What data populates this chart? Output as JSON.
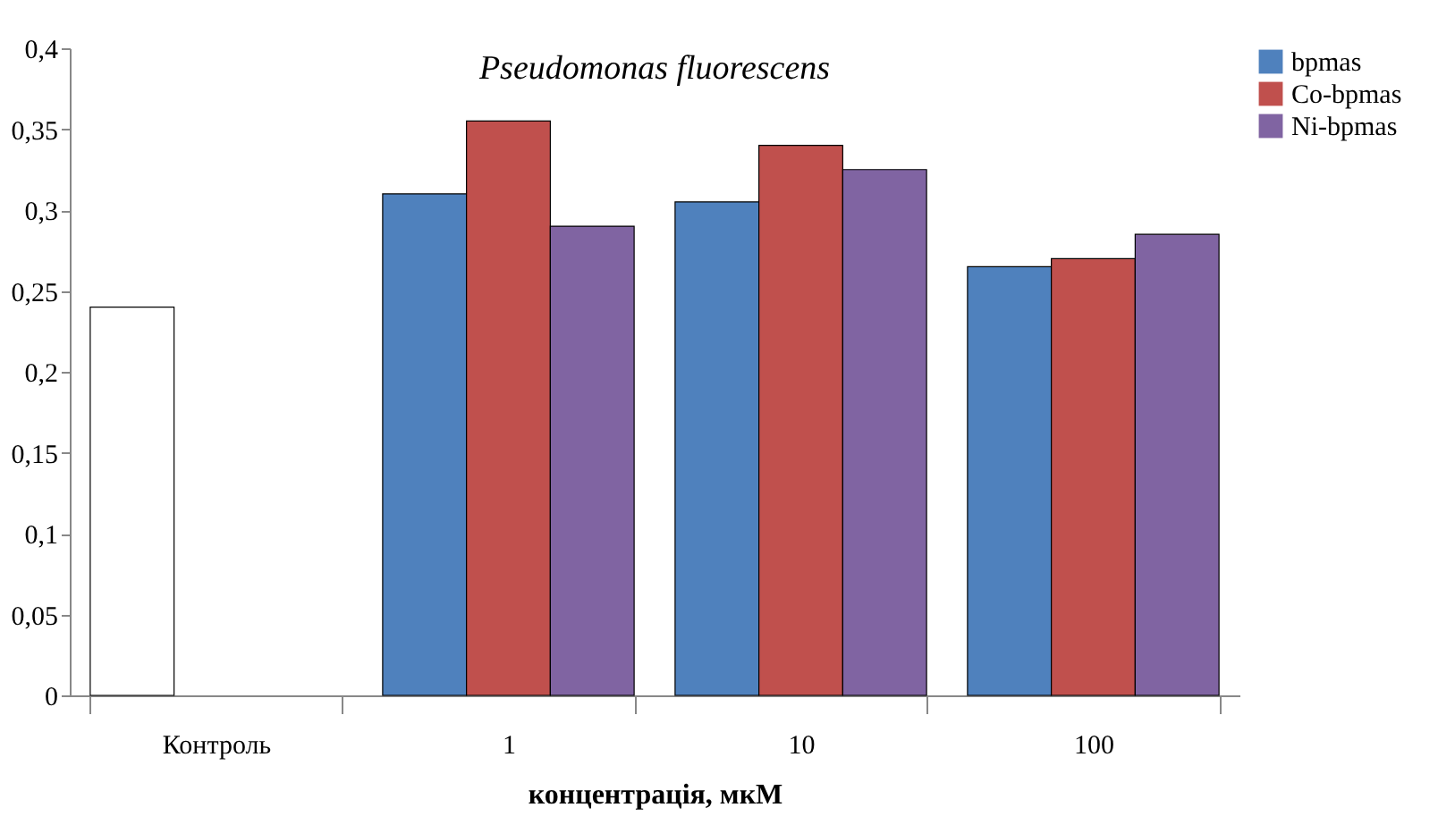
{
  "chart_data": {
    "type": "bar",
    "title": "Pseudomonas fluorescens",
    "xlabel": "концентрація, мкМ",
    "categories": [
      "Контроль",
      "1",
      "10",
      "100"
    ],
    "series": [
      {
        "color": "#ffffff",
        "values": [
          0.24,
          null,
          null,
          null
        ]
      },
      {
        "name": "bpmas",
        "color": "#4f81bd",
        "values": [
          null,
          0.31,
          0.305,
          0.265
        ]
      },
      {
        "name": "Co-bpmas",
        "color": "#c0504d",
        "values": [
          null,
          0.355,
          0.34,
          0.27
        ]
      },
      {
        "name": "Ni-bpmas",
        "color": "#8064a2",
        "values": [
          null,
          0.29,
          0.325,
          0.285
        ]
      }
    ],
    "ylim": [
      0,
      0.4
    ],
    "yticks": [
      0,
      {
        "value": 0.05,
        "label": "0,05"
      },
      {
        "value": 0.1,
        "label": "0,1"
      },
      {
        "value": 0.15,
        "label": "0,15"
      },
      {
        "value": 0.2,
        "label": "0,2"
      },
      {
        "value": 0.25,
        "label": "0,25"
      },
      {
        "value": 0.3,
        "label": "0,3"
      },
      {
        "value": 0.35,
        "label": "0,35"
      },
      {
        "value": 0.4,
        "label": "0,4"
      }
    ],
    "grid": false,
    "legend": "right"
  }
}
